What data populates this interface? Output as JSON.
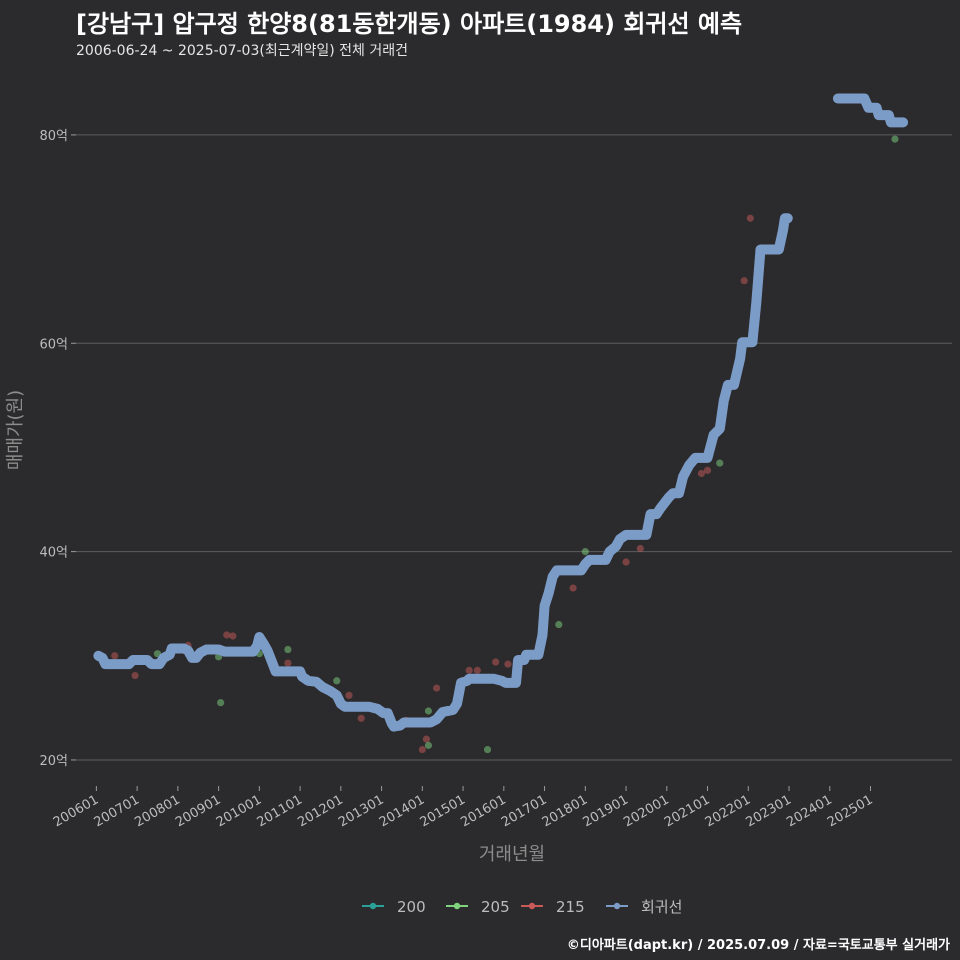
{
  "header": {
    "title": "[강남구] 압구정 한양8(81동한개동) 아파트(1984) 회귀선 예측",
    "subtitle": "2006-06-24 ~ 2025-07-03(최근계약일) 전체 거래건"
  },
  "footer": {
    "credit": "©디아파트(dapt.kr) / 2025.07.09 / 자료=국토교통부 실거래가"
  },
  "colors": {
    "background": "#2b2a2c",
    "grid": "#5e5e5e",
    "s200": "#2aa198",
    "s205": "#7fd37f",
    "s215": "#c85a5a",
    "regression": "#7c9cc8"
  },
  "chart_data": {
    "type": "scatter",
    "title": "[강남구] 압구정 한양8(81동한개동) 아파트(1984) 회귀선 예측",
    "xlabel": "거래년월",
    "ylabel": "매매가(원)",
    "xlim": [
      2005.5,
      2027.0
    ],
    "ylim": [
      17.5,
      87.0
    ],
    "y_ticks": [
      {
        "value": 20,
        "label": "20억"
      },
      {
        "value": 40,
        "label": "40억"
      },
      {
        "value": 60,
        "label": "60억"
      },
      {
        "value": 80,
        "label": "80억"
      }
    ],
    "x_ticks": [
      {
        "value": 2006,
        "label": "200601"
      },
      {
        "value": 2007,
        "label": "200701"
      },
      {
        "value": 2008,
        "label": "200801"
      },
      {
        "value": 2009,
        "label": "200901"
      },
      {
        "value": 2010,
        "label": "201001"
      },
      {
        "value": 2011,
        "label": "201101"
      },
      {
        "value": 2012,
        "label": "201201"
      },
      {
        "value": 2013,
        "label": "201301"
      },
      {
        "value": 2014,
        "label": "201401"
      },
      {
        "value": 2015,
        "label": "201501"
      },
      {
        "value": 2016,
        "label": "201601"
      },
      {
        "value": 2017,
        "label": "201701"
      },
      {
        "value": 2018,
        "label": "201801"
      },
      {
        "value": 2019,
        "label": "201901"
      },
      {
        "value": 2020,
        "label": "202001"
      },
      {
        "value": 2021,
        "label": "202101"
      },
      {
        "value": 2022,
        "label": "202201"
      },
      {
        "value": 2023,
        "label": "202301"
      },
      {
        "value": 2024,
        "label": "202401"
      },
      {
        "value": 2025,
        "label": "202501"
      }
    ],
    "legend": [
      "200",
      "205",
      "215",
      "회귀선"
    ],
    "series": [
      {
        "name": "200",
        "points": []
      },
      {
        "name": "205",
        "points": [
          [
            2007.5,
            30.2
          ],
          [
            2009.0,
            29.9
          ],
          [
            2009.05,
            25.5
          ],
          [
            2010.0,
            30.2
          ],
          [
            2010.7,
            30.6
          ],
          [
            2011.9,
            27.6
          ],
          [
            2014.15,
            24.7
          ],
          [
            2014.15,
            21.4
          ],
          [
            2015.6,
            21.0
          ],
          [
            2017.35,
            33.0
          ],
          [
            2018.0,
            40.0
          ],
          [
            2021.3,
            48.5
          ],
          [
            2025.45,
            82.0
          ],
          [
            2025.6,
            79.6
          ]
        ]
      },
      {
        "name": "215",
        "points": [
          [
            2006.45,
            30.0
          ],
          [
            2006.95,
            28.1
          ],
          [
            2008.25,
            31.0
          ],
          [
            2009.2,
            32.0
          ],
          [
            2009.35,
            31.9
          ],
          [
            2010.7,
            29.3
          ],
          [
            2012.2,
            26.2
          ],
          [
            2012.5,
            24.0
          ],
          [
            2013.6,
            23.8
          ],
          [
            2014.0,
            21.0
          ],
          [
            2014.1,
            22.0
          ],
          [
            2014.35,
            26.9
          ],
          [
            2015.15,
            28.6
          ],
          [
            2015.35,
            28.6
          ],
          [
            2015.8,
            29.4
          ],
          [
            2016.1,
            29.2
          ],
          [
            2017.7,
            36.5
          ],
          [
            2019.0,
            39.0
          ],
          [
            2019.35,
            40.3
          ],
          [
            2020.85,
            47.5
          ],
          [
            2021.0,
            47.8
          ],
          [
            2021.9,
            66.0
          ],
          [
            2022.05,
            72.0
          ]
        ]
      },
      {
        "name": "회귀선",
        "points": [
          [
            2006.05,
            30.0
          ],
          [
            2006.15,
            29.8
          ],
          [
            2006.22,
            29.2
          ],
          [
            2006.6,
            29.2
          ],
          [
            2006.8,
            29.2
          ],
          [
            2006.9,
            29.6
          ],
          [
            2007.25,
            29.6
          ],
          [
            2007.35,
            29.2
          ],
          [
            2007.55,
            29.2
          ],
          [
            2007.65,
            29.8
          ],
          [
            2007.8,
            30.1
          ],
          [
            2007.85,
            30.7
          ],
          [
            2008.15,
            30.7
          ],
          [
            2008.25,
            30.5
          ],
          [
            2008.35,
            29.8
          ],
          [
            2008.45,
            29.8
          ],
          [
            2008.55,
            30.3
          ],
          [
            2008.7,
            30.6
          ],
          [
            2009.0,
            30.6
          ],
          [
            2009.15,
            30.4
          ],
          [
            2009.5,
            30.4
          ],
          [
            2009.85,
            30.4
          ],
          [
            2009.95,
            31.0
          ],
          [
            2010.0,
            31.8
          ],
          [
            2010.1,
            31.2
          ],
          [
            2010.2,
            30.5
          ],
          [
            2010.3,
            29.5
          ],
          [
            2010.4,
            28.5
          ],
          [
            2010.7,
            28.5
          ],
          [
            2011.0,
            28.5
          ],
          [
            2011.05,
            28.0
          ],
          [
            2011.2,
            27.6
          ],
          [
            2011.4,
            27.5
          ],
          [
            2011.55,
            27.0
          ],
          [
            2011.75,
            26.6
          ],
          [
            2011.9,
            26.2
          ],
          [
            2012.0,
            25.4
          ],
          [
            2012.1,
            25.1
          ],
          [
            2012.4,
            25.1
          ],
          [
            2012.7,
            25.1
          ],
          [
            2012.9,
            24.9
          ],
          [
            2013.05,
            24.5
          ],
          [
            2013.15,
            24.5
          ],
          [
            2013.25,
            23.5
          ],
          [
            2013.3,
            23.2
          ],
          [
            2013.45,
            23.3
          ],
          [
            2013.55,
            23.6
          ],
          [
            2013.7,
            23.6
          ],
          [
            2014.0,
            23.6
          ],
          [
            2014.2,
            23.6
          ],
          [
            2014.35,
            23.9
          ],
          [
            2014.5,
            24.6
          ],
          [
            2014.75,
            24.8
          ],
          [
            2014.85,
            25.4
          ],
          [
            2014.95,
            27.4
          ],
          [
            2015.1,
            27.6
          ],
          [
            2015.15,
            27.8
          ],
          [
            2015.5,
            27.8
          ],
          [
            2015.75,
            27.8
          ],
          [
            2015.95,
            27.6
          ],
          [
            2016.05,
            27.4
          ],
          [
            2016.3,
            27.4
          ],
          [
            2016.35,
            29.6
          ],
          [
            2016.5,
            29.6
          ],
          [
            2016.55,
            30.1
          ],
          [
            2016.85,
            30.1
          ],
          [
            2016.95,
            32.0
          ],
          [
            2017.0,
            34.8
          ],
          [
            2017.1,
            36.0
          ],
          [
            2017.2,
            37.6
          ],
          [
            2017.3,
            38.2
          ],
          [
            2017.6,
            38.2
          ],
          [
            2017.9,
            38.2
          ],
          [
            2018.0,
            38.8
          ],
          [
            2018.1,
            39.2
          ],
          [
            2018.3,
            39.2
          ],
          [
            2018.5,
            39.2
          ],
          [
            2018.6,
            40.0
          ],
          [
            2018.75,
            40.5
          ],
          [
            2018.85,
            41.2
          ],
          [
            2019.0,
            41.6
          ],
          [
            2019.3,
            41.6
          ],
          [
            2019.5,
            41.6
          ],
          [
            2019.6,
            43.6
          ],
          [
            2019.75,
            43.6
          ],
          [
            2019.85,
            44.2
          ],
          [
            2020.05,
            45.2
          ],
          [
            2020.15,
            45.6
          ],
          [
            2020.3,
            45.6
          ],
          [
            2020.4,
            47.2
          ],
          [
            2020.55,
            48.3
          ],
          [
            2020.7,
            49.0
          ],
          [
            2020.85,
            49.0
          ],
          [
            2021.0,
            49.0
          ],
          [
            2021.15,
            51.2
          ],
          [
            2021.3,
            51.8
          ],
          [
            2021.4,
            54.5
          ],
          [
            2021.5,
            56.0
          ],
          [
            2021.65,
            56.0
          ],
          [
            2021.8,
            58.5
          ],
          [
            2021.85,
            60.1
          ],
          [
            2022.1,
            60.1
          ],
          [
            2022.2,
            64.0
          ],
          [
            2022.3,
            69.0
          ],
          [
            2022.55,
            69.0
          ],
          [
            2022.75,
            69.0
          ],
          [
            2022.85,
            70.8
          ],
          [
            2022.9,
            72.0
          ],
          [
            2022.97,
            72.0
          ],
          null,
          [
            2024.2,
            83.5
          ],
          [
            2024.5,
            83.5
          ],
          [
            2024.85,
            83.5
          ],
          [
            2024.95,
            82.6
          ],
          [
            2025.15,
            82.6
          ],
          [
            2025.2,
            81.9
          ],
          [
            2025.45,
            81.9
          ],
          [
            2025.5,
            81.2
          ],
          [
            2025.8,
            81.2
          ]
        ]
      }
    ]
  }
}
